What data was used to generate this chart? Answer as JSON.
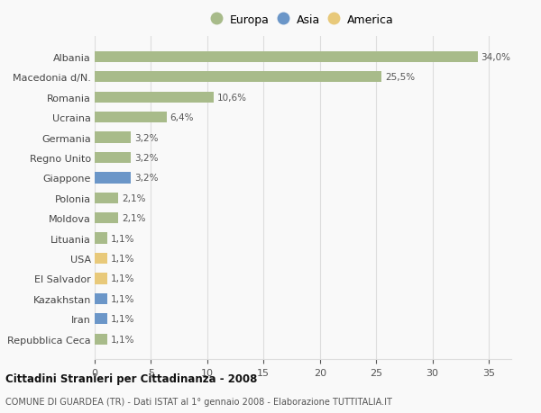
{
  "categories": [
    "Repubblica Ceca",
    "Iran",
    "Kazakhstan",
    "El Salvador",
    "USA",
    "Lituania",
    "Moldova",
    "Polonia",
    "Giappone",
    "Regno Unito",
    "Germania",
    "Ucraina",
    "Romania",
    "Macedonia d/N.",
    "Albania"
  ],
  "values": [
    1.1,
    1.1,
    1.1,
    1.1,
    1.1,
    1.1,
    2.1,
    2.1,
    3.2,
    3.2,
    3.2,
    6.4,
    10.6,
    25.5,
    34.0
  ],
  "colors": [
    "#a8bb8a",
    "#6b96c8",
    "#6b96c8",
    "#e8c97a",
    "#e8c97a",
    "#a8bb8a",
    "#a8bb8a",
    "#a8bb8a",
    "#6b96c8",
    "#a8bb8a",
    "#a8bb8a",
    "#a8bb8a",
    "#a8bb8a",
    "#a8bb8a",
    "#a8bb8a"
  ],
  "labels": [
    "1,1%",
    "1,1%",
    "1,1%",
    "1,1%",
    "1,1%",
    "1,1%",
    "2,1%",
    "2,1%",
    "3,2%",
    "3,2%",
    "3,2%",
    "6,4%",
    "10,6%",
    "25,5%",
    "34,0%"
  ],
  "legend": [
    {
      "label": "Europa",
      "color": "#a8bb8a"
    },
    {
      "label": "Asia",
      "color": "#6b96c8"
    },
    {
      "label": "America",
      "color": "#e8c97a"
    }
  ],
  "title1": "Cittadini Stranieri per Cittadinanza - 2008",
  "title2": "COMUNE DI GUARDEA (TR) - Dati ISTAT al 1° gennaio 2008 - Elaborazione TUTTITALIA.IT",
  "xlim": [
    0,
    37
  ],
  "xticks": [
    0,
    5,
    10,
    15,
    20,
    25,
    30,
    35
  ],
  "background_color": "#f9f9f9",
  "grid_color": "#dddddd",
  "bar_height": 0.55
}
